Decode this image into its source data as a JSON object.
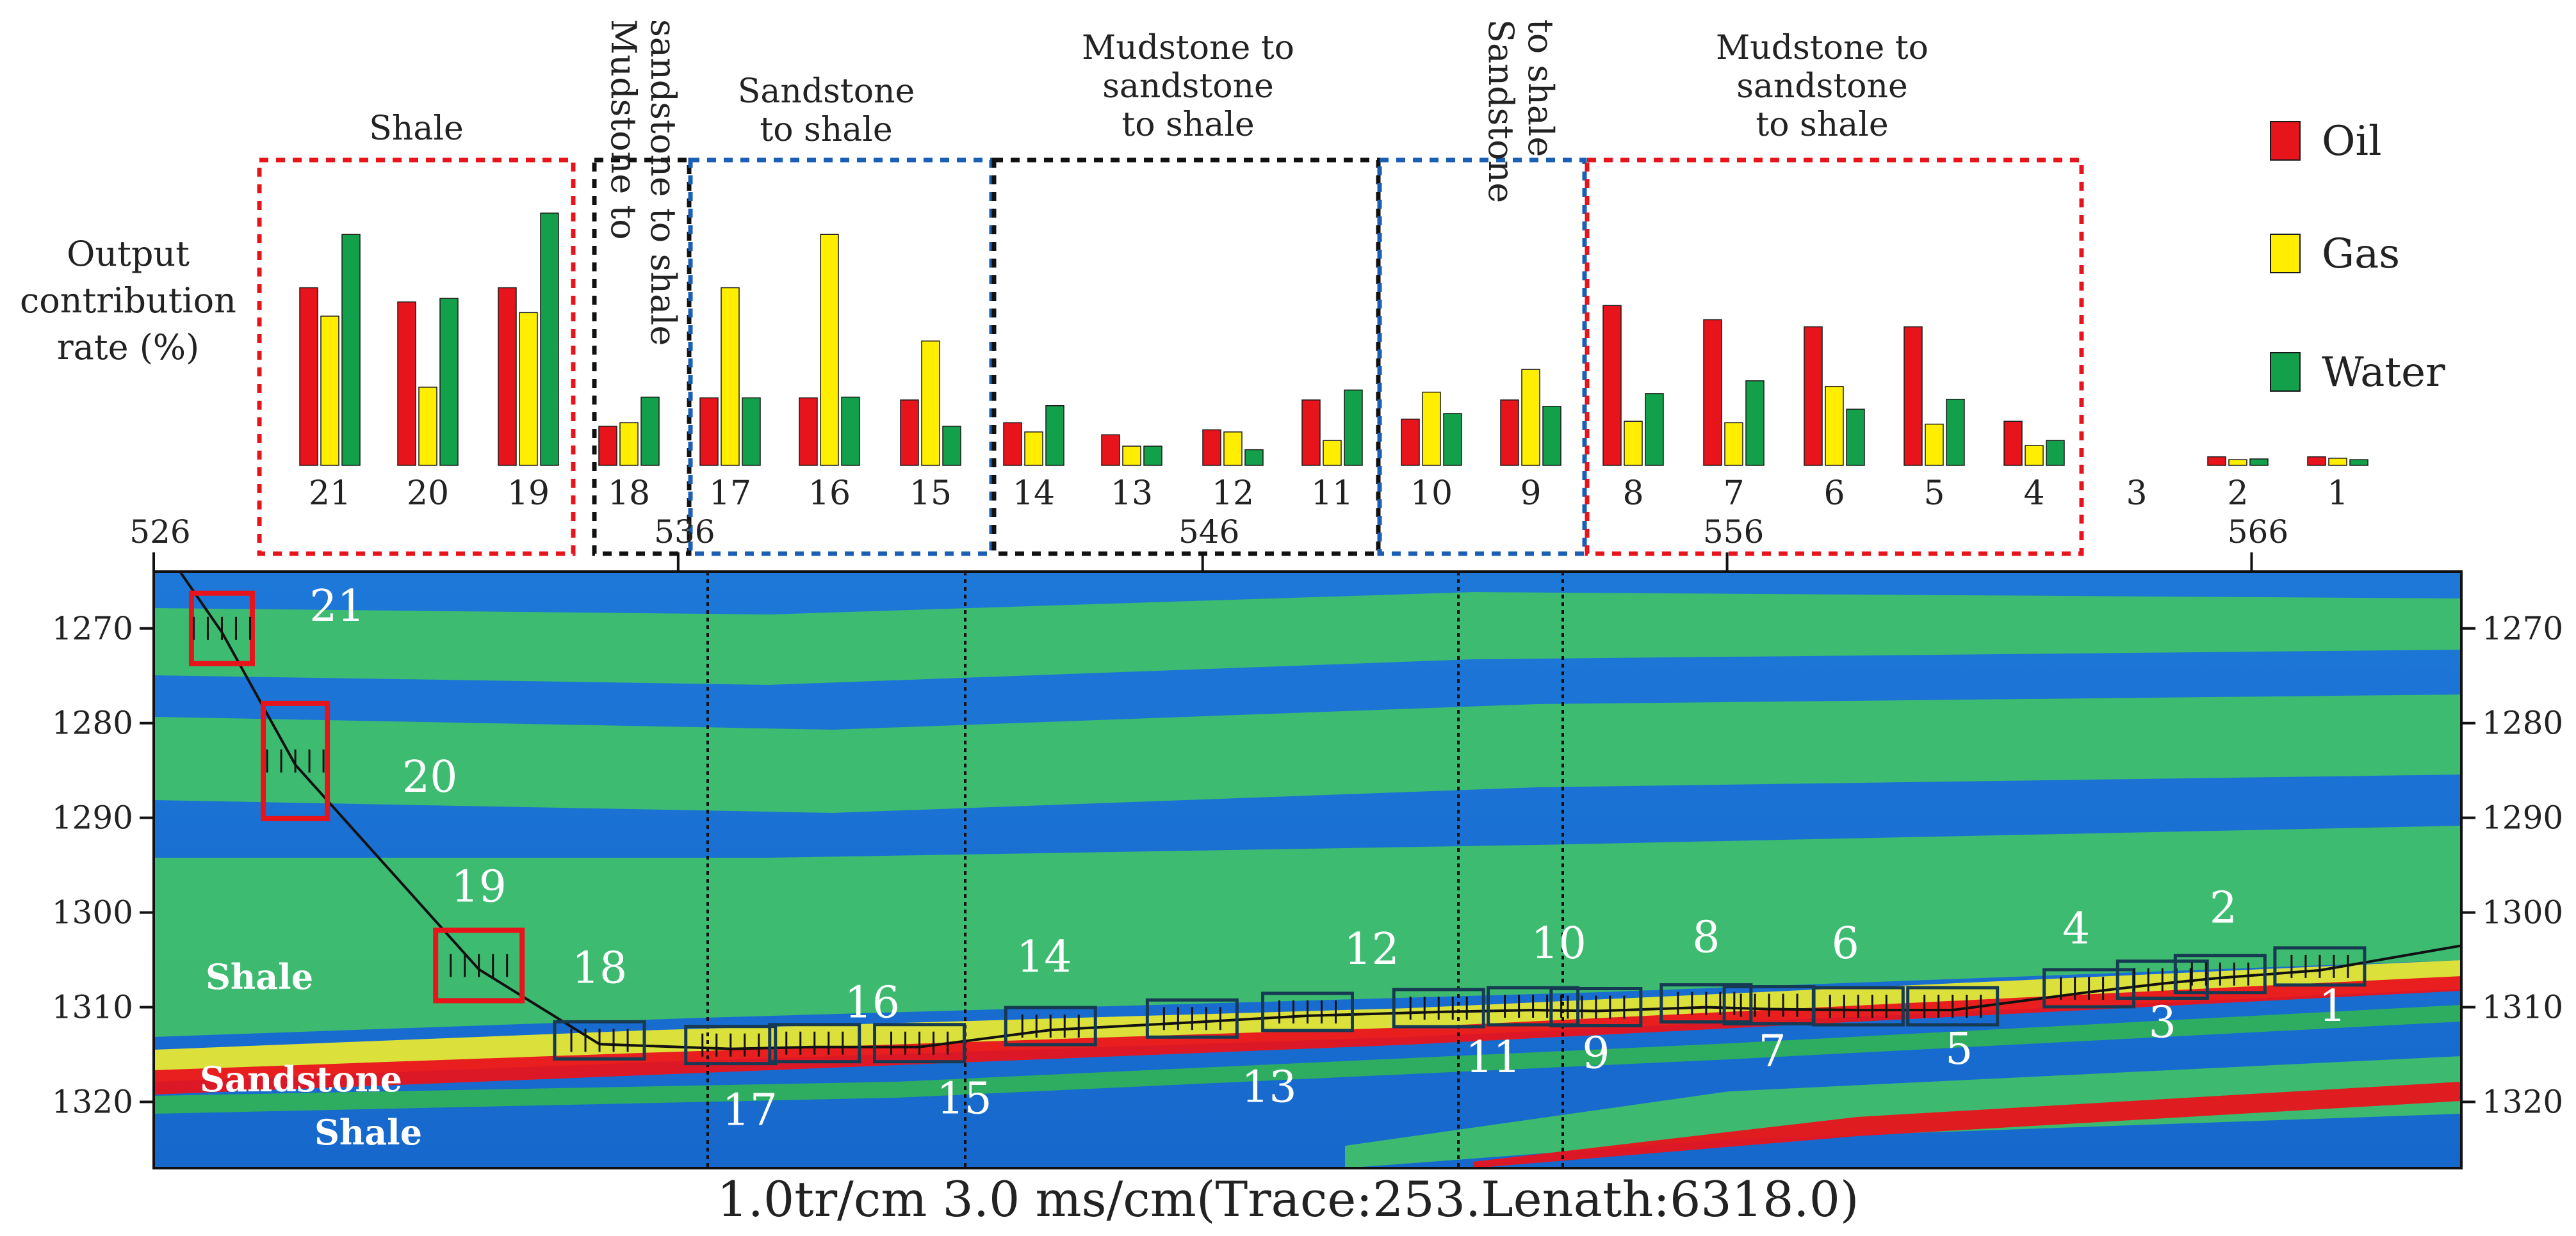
{
  "chart_data": [
    {
      "type": "bar",
      "ylabel": "Output contribution rate (%)",
      "ylabel_lines": [
        "Output",
        "contribution",
        "rate (%)"
      ],
      "categories": [
        "21",
        "20",
        "19",
        "18",
        "17",
        "16",
        "15",
        "14",
        "13",
        "12",
        "11",
        "10",
        "9",
        "8",
        "7",
        "6",
        "5",
        "4",
        "3",
        "2",
        "1"
      ],
      "series": [
        {
          "name": "Oil",
          "color": "#e8141c",
          "values": [
            25,
            23,
            25,
            5.5,
            9.5,
            9.5,
            9.2,
            6.0,
            4.3,
            5.0,
            9.2,
            6.5,
            9.2,
            22.5,
            20.5,
            19.5,
            19.5,
            6.2,
            0,
            1.2,
            1.2
          ]
        },
        {
          "name": "Gas",
          "color": "#ffee00",
          "values": [
            21,
            11,
            21.5,
            6.0,
            25,
            32.5,
            17.5,
            4.7,
            2.7,
            4.7,
            3.5,
            10.3,
            13.5,
            6.2,
            6.0,
            11.1,
            5.8,
            2.8,
            0,
            0.8,
            1.0
          ]
        },
        {
          "name": "Water",
          "color": "#12a04a",
          "values": [
            32.5,
            23.5,
            35.5,
            9.6,
            9.5,
            9.6,
            5.5,
            8.4,
            2.7,
            2.2,
            10.6,
            7.3,
            8.3,
            10.1,
            11.9,
            7.9,
            9.3,
            3.5,
            0,
            0.9,
            0.8
          ]
        }
      ],
      "ylim": [
        0,
        36
      ],
      "groups": [
        {
          "label": [
            "Shale"
          ],
          "color": "#e8141c",
          "members": [
            "21",
            "20",
            "19"
          ]
        },
        {
          "label": [
            "Mudstone to",
            "sandstone to shale"
          ],
          "color": "#111111",
          "members": [
            "18"
          ],
          "vertical": true
        },
        {
          "label": [
            "Sandstone",
            "to shale"
          ],
          "color": "#1a5fb4",
          "members": [
            "17",
            "16",
            "15"
          ]
        },
        {
          "label": [
            "Mudstone to",
            "sandstone",
            "to shale"
          ],
          "color": "#111111",
          "members": [
            "14",
            "13",
            "12",
            "11"
          ]
        },
        {
          "label": [
            "Sandstone",
            "to shale"
          ],
          "color": "#1a5fb4",
          "members": [
            "10",
            "9"
          ],
          "vertical": true
        },
        {
          "label": [
            "Mudstone to",
            "sandstone",
            "to shale"
          ],
          "color": "#e8141c",
          "members": [
            "8",
            "7",
            "6",
            "5",
            "4"
          ]
        }
      ],
      "legend": {
        "position": "top-right",
        "entries": [
          "Oil",
          "Gas",
          "Water"
        ]
      }
    },
    {
      "type": "heatmap",
      "description_text": "1.0tr/cm 3.0 ms/cm(Trace:253.Lenath:6318.0)",
      "x_ticks": [
        526,
        536,
        546,
        556,
        566
      ],
      "y_ticks": [
        1270,
        1280,
        1290,
        1300,
        1310,
        1320
      ],
      "xlim": [
        526,
        570
      ],
      "ylim": [
        1327,
        1264
      ],
      "facies_labels": [
        "Shale",
        "Sandstone",
        "Shale"
      ],
      "segments": [
        {
          "id": "21",
          "trace": 527.3,
          "time": 1270.0,
          "box": "red"
        },
        {
          "id": "20",
          "trace": 528.7,
          "time": 1284.0,
          "box": "red"
        },
        {
          "id": "19",
          "trace": 532.2,
          "time": 1305.6,
          "box": "red"
        },
        {
          "id": "18",
          "trace": 534.5,
          "time": 1313.5,
          "box": "dark"
        },
        {
          "id": "17",
          "trace": 537.0,
          "time": 1314.0,
          "box": "dark"
        },
        {
          "id": "16",
          "trace": 538.6,
          "time": 1313.8,
          "box": "dark"
        },
        {
          "id": "15",
          "trace": 540.6,
          "time": 1313.8,
          "box": "dark"
        },
        {
          "id": "14",
          "trace": 543.1,
          "time": 1312.0,
          "box": "dark"
        },
        {
          "id": "13",
          "trace": 545.8,
          "time": 1311.2,
          "box": "dark"
        },
        {
          "id": "12",
          "trace": 548.0,
          "time": 1310.5,
          "box": "dark"
        },
        {
          "id": "11",
          "trace": 550.5,
          "time": 1310.1,
          "box": "dark"
        },
        {
          "id": "10",
          "trace": 552.3,
          "time": 1309.9,
          "box": "dark"
        },
        {
          "id": "9",
          "trace": 553.5,
          "time": 1310.0,
          "box": "dark"
        },
        {
          "id": "8",
          "trace": 555.6,
          "time": 1309.6,
          "box": "dark"
        },
        {
          "id": "7",
          "trace": 556.8,
          "time": 1309.8,
          "box": "dark"
        },
        {
          "id": "6",
          "trace": 558.5,
          "time": 1309.9,
          "box": "dark"
        },
        {
          "id": "5",
          "trace": 560.3,
          "time": 1309.9,
          "box": "dark"
        },
        {
          "id": "4",
          "trace": 562.9,
          "time": 1308.0,
          "box": "dark"
        },
        {
          "id": "3",
          "trace": 564.3,
          "time": 1307.1,
          "box": "dark"
        },
        {
          "id": "2",
          "trace": 565.4,
          "time": 1306.5,
          "box": "dark"
        },
        {
          "id": "1",
          "trace": 567.3,
          "time": 1305.7,
          "box": "dark"
        }
      ]
    }
  ]
}
